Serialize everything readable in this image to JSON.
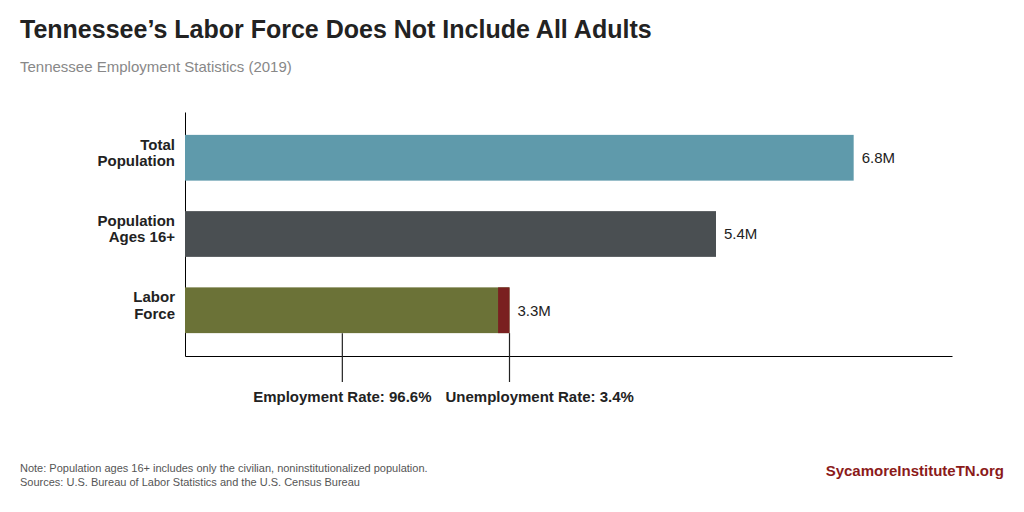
{
  "chart_data": {
    "type": "bar",
    "orientation": "horizontal",
    "title": "Tennessee’s Labor Force Does Not Include All Adults",
    "subtitle": "Tennessee Employment Statistics (2019)",
    "categories": [
      "Labor\nForce",
      "Population\nAges 16+",
      "Total\nPopulation"
    ],
    "values": [
      3.3,
      5.4,
      6.8
    ],
    "colors": [
      "#6b7237",
      "#4a4f52",
      "#5f9aab"
    ],
    "data_labels": true,
    "value_labels": [
      "3.3M",
      "5.4M",
      "6.8M"
    ],
    "xlim": [
      0,
      7.8
    ],
    "tick_labels": "y",
    "unemployed": {
      "value": 0.116,
      "color": "#7a2020"
    },
    "annotations": [
      {
        "x": 1.6,
        "text": "Employment Rate: 96.6%"
      },
      {
        "x": 3.3,
        "text": "Unemployment Rate: 3.4%"
      }
    ],
    "footnotes": [
      "Note:  Population ages 16+ includes only the civilian, noninstitutionalized population.",
      "Sources: U.S. Bureau of Labor Statistics and the U.S. Census Bureau"
    ],
    "branding": {
      "text": "SycamoreInstituteTN.org",
      "color": "#8b1a1a"
    }
  }
}
